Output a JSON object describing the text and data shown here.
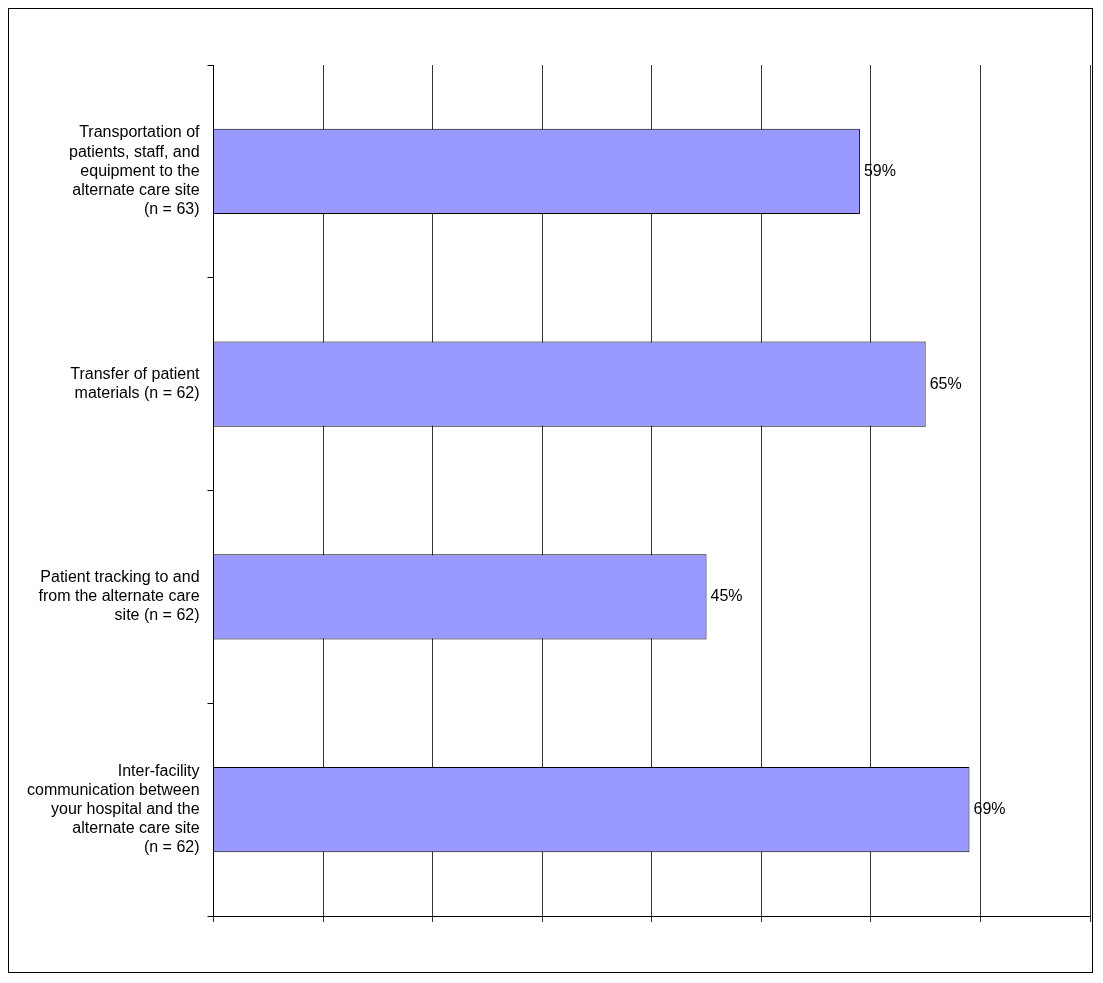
{
  "chart_data": {
    "type": "bar",
    "orientation": "horizontal",
    "categories": [
      "Transportation of patients, staff, and equipment to the alternate care site (n = 63)",
      "Transfer of patient materials (n = 62)",
      "Patient tracking to and from the alternate care site (n = 62)",
      "Inter-facility communication between your hospital and the alternate care site (n = 62)"
    ],
    "values": [
      59,
      65,
      45,
      69
    ],
    "value_labels": [
      "59%",
      "65%",
      "45%",
      "69%"
    ],
    "color": "#9999ff",
    "xlim": [
      0,
      80
    ],
    "xticks": [
      {
        "value": 0,
        "label": null
      },
      {
        "value": 10,
        "label": null
      },
      {
        "value": 20,
        "label": null
      },
      {
        "value": 30,
        "label": null
      },
      {
        "value": 40,
        "label": null
      },
      {
        "value": 50,
        "label": null
      },
      {
        "value": 60,
        "label": null
      },
      {
        "value": 70,
        "label": null
      },
      {
        "value": 80,
        "label": null
      }
    ],
    "grid": "x",
    "legend": false,
    "tick_labels": "y"
  }
}
